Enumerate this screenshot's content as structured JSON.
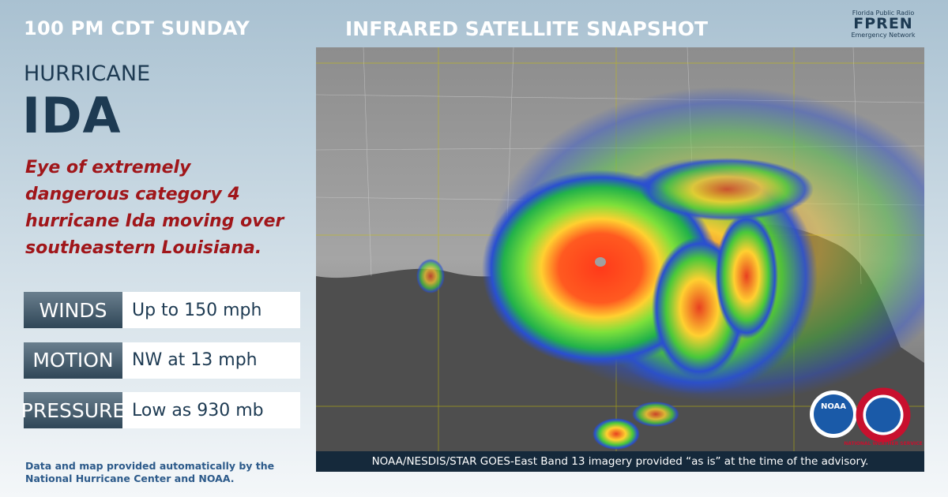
{
  "header": {
    "time": "100 PM CDT SUNDAY",
    "title": "INFRARED SATELLITE SNAPSHOT",
    "logo": {
      "top": "Florida Public Radio",
      "main": "FPREN",
      "bottom": "Emergency Network"
    }
  },
  "storm": {
    "kind": "HURRICANE",
    "name": "IDA",
    "description": "Eye of extremely dangerous category 4 hurricane Ida moving over  southeastern Louisiana."
  },
  "stats": [
    {
      "label": "WINDS",
      "value": "Up to 150 mph"
    },
    {
      "label": "MOTION",
      "value": "NW at 13 mph"
    },
    {
      "label": "PRESSURE",
      "value": "Low as 930 mb"
    }
  ],
  "footer": "Data and map provided automatically by the National Hurricane Center and NOAA.",
  "image": {
    "caption": "NOAA/NESDIS/STAR GOES-East Band 13 imagery provided “as is” at the time of the advisory.",
    "logos": [
      "NOAA",
      "NATIONAL WEATHER SERVICE"
    ]
  }
}
